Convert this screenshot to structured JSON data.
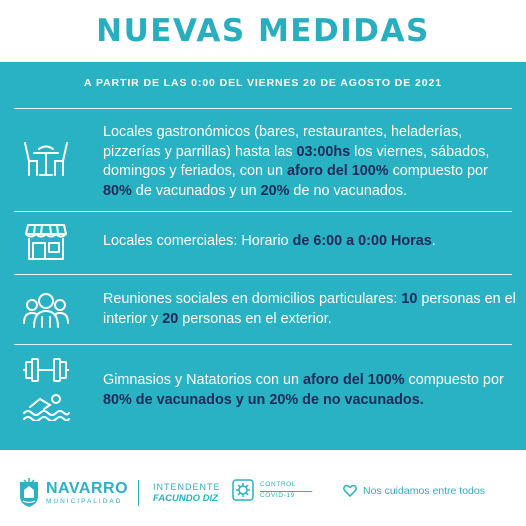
{
  "header": {
    "title": "NUEVAS MEDIDAS"
  },
  "subtitle": "A PARTIR DE LAS 0:00 DEL VIERNES 20 DE AGOSTO DE 2021",
  "measures": [
    {
      "icon": "restaurant-table-icon",
      "segments": [
        "Locales gastronómicos (bares, restaurantes, heladerías, pizzerías y parrillas) hasta las ",
        "03:00hs",
        " los viernes, sábados, domingos y feriados, con un ",
        "aforo del 100%",
        " compuesto por ",
        "80%",
        " de vacunados y un ",
        "20%",
        " de no vacunados."
      ]
    },
    {
      "icon": "storefront-icon",
      "segments": [
        "Locales comerciales: Horario ",
        "de",
        " ",
        "6:00 a 0:00 Horas",
        "."
      ]
    },
    {
      "icon": "people-group-icon",
      "segments": [
        "Reuniones sociales en domicilios particulares: ",
        "10",
        " personas en el interior y ",
        "20",
        " personas en el exterior."
      ]
    },
    {
      "icon": "dumbbell-swimmer-icon",
      "segments": [
        "Gimnasios y Natatorios con un ",
        "aforo del 100%",
        " compuesto por ",
        "80% de vacunados y un 20% de no vacunados."
      ]
    }
  ],
  "footer": {
    "brand_name": "NAVARRO",
    "brand_sub": "MUNICIPALIDAD",
    "intendente_label": "INTENDENTE",
    "intendente_name": "FACUNDO DIZ",
    "control_line1": "CONTROL",
    "control_line2": "COVID-19",
    "slogan": "Nos cuidamos entre todos"
  },
  "colors": {
    "teal": "#29b1c4",
    "navy": "#1d2a5a",
    "white": "#ffffff"
  }
}
